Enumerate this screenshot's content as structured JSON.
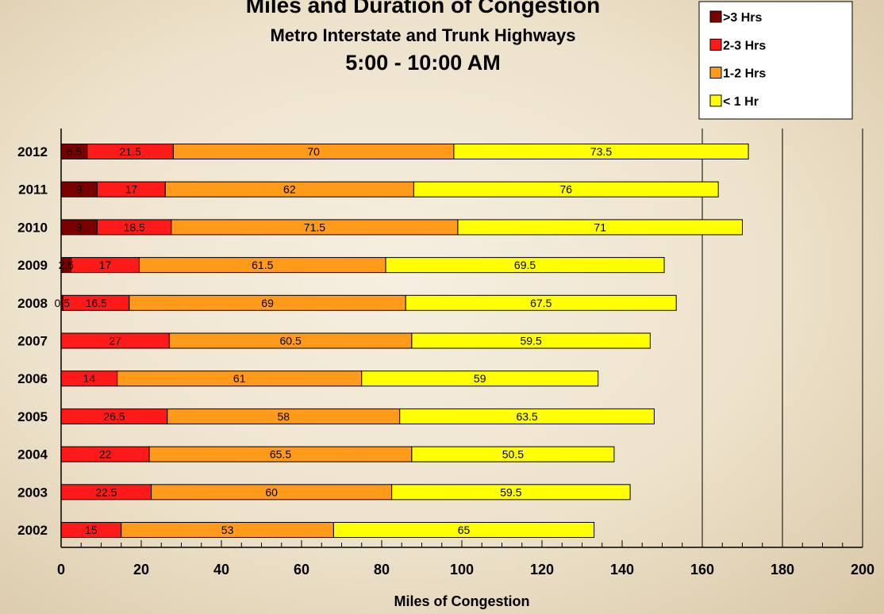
{
  "chart_data": {
    "type": "bar",
    "orientation": "horizontal",
    "stacked": true,
    "title": "Miles and Duration of Congestion",
    "subtitle": "Metro Interstate and Trunk Highways",
    "time_range": "5:00 - 10:00 AM",
    "xlabel": "Miles of Congestion",
    "ylabel": "",
    "xlim": [
      0,
      200
    ],
    "xticks": [
      "0",
      "20",
      "40",
      "60",
      "80",
      "100",
      "120",
      "140",
      "160",
      "180",
      "200"
    ],
    "grid": "vertical lines at 160, 180 and 200",
    "legend_position": "top-right",
    "categories": [
      "2012",
      "2011",
      "2010",
      "2009",
      "2008",
      "2007",
      "2006",
      "2005",
      "2004",
      "2003",
      "2002"
    ],
    "series": [
      {
        "name": ">3 Hrs",
        "color": "#7a0000",
        "values": [
          6.5,
          9,
          9,
          2.5,
          0.5,
          0,
          0,
          0,
          0,
          0,
          0
        ],
        "labels": [
          "6.5",
          "9",
          "9",
          "2.5",
          "0.5",
          "",
          "",
          "",
          "",
          "",
          ""
        ]
      },
      {
        "name": "2-3 Hrs",
        "color": "#ff1a1a",
        "values": [
          21.5,
          17,
          18.5,
          17,
          16.5,
          27,
          14,
          26.5,
          22,
          22.5,
          15
        ],
        "labels": [
          "21.5",
          "17",
          "18.5",
          "17",
          "16.5",
          "27",
          "14",
          "26.5",
          "22",
          "22.5",
          "15"
        ]
      },
      {
        "name": "1-2 Hrs",
        "color": "#ff9a1a",
        "values": [
          70,
          62,
          71.5,
          61.5,
          69,
          60.5,
          61,
          58,
          65.5,
          60,
          53
        ],
        "labels": [
          "70",
          "62",
          "71.5",
          "61.5",
          "69",
          "60.5",
          "61",
          "58",
          "65.5",
          "60",
          "53"
        ]
      },
      {
        "name": "< 1 Hr",
        "color": "#ffff00",
        "values": [
          73.5,
          76,
          71,
          69.5,
          67.5,
          59.5,
          59,
          63.5,
          50.5,
          59.5,
          65
        ],
        "labels": [
          "73.5",
          "76",
          "71",
          "69.5",
          "67.5",
          "59.5",
          "59",
          "63.5",
          "50.5",
          "59.5",
          "65"
        ]
      }
    ]
  }
}
